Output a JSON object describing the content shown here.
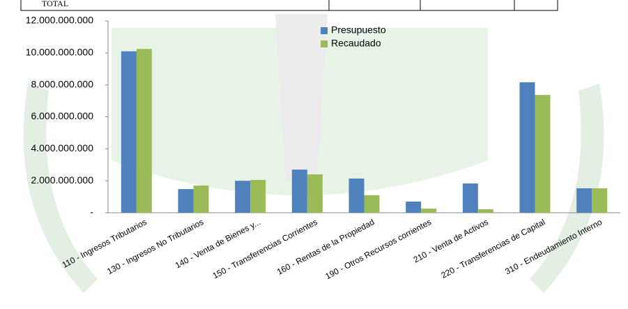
{
  "table_fragment": {
    "label": "TOTAL"
  },
  "chart_data": {
    "type": "bar",
    "categories": [
      "110 - Ingresos Tributarios",
      "130 - Ingresos No Tributarios",
      "140 - Venta de Bienes y...",
      "150 - Transferencias Corrientes",
      "160 - Rentas de la Propiedad",
      "190 - Otros Recursos corrientes",
      "210 - Venta de Activos",
      "220 - Transferencias de Capital",
      "310 - Endeudamiento Interno"
    ],
    "series": [
      {
        "name": "Presupuesto",
        "color": "#4f81bd",
        "values": [
          10100000000,
          1480000000,
          2000000000,
          2700000000,
          2140000000,
          700000000,
          1830000000,
          8160000000,
          1530000000
        ]
      },
      {
        "name": "Recaudado",
        "color": "#9bbb59",
        "values": [
          10250000000,
          1700000000,
          2050000000,
          2400000000,
          1100000000,
          260000000,
          220000000,
          7370000000,
          1530000000
        ]
      }
    ],
    "ylim": [
      0,
      12000000000
    ],
    "yticks": [
      {
        "value": 0,
        "label": "-"
      },
      {
        "value": 2000000000,
        "label": "2.000.000.000"
      },
      {
        "value": 4000000000,
        "label": "4.000.000.000"
      },
      {
        "value": 6000000000,
        "label": "6.000.000.000"
      },
      {
        "value": 8000000000,
        "label": "8.000.000.000"
      },
      {
        "value": 10000000000,
        "label": "10.000.000.000"
      },
      {
        "value": 12000000000,
        "label": "12.000.000.000"
      }
    ],
    "legend": "top-center"
  }
}
